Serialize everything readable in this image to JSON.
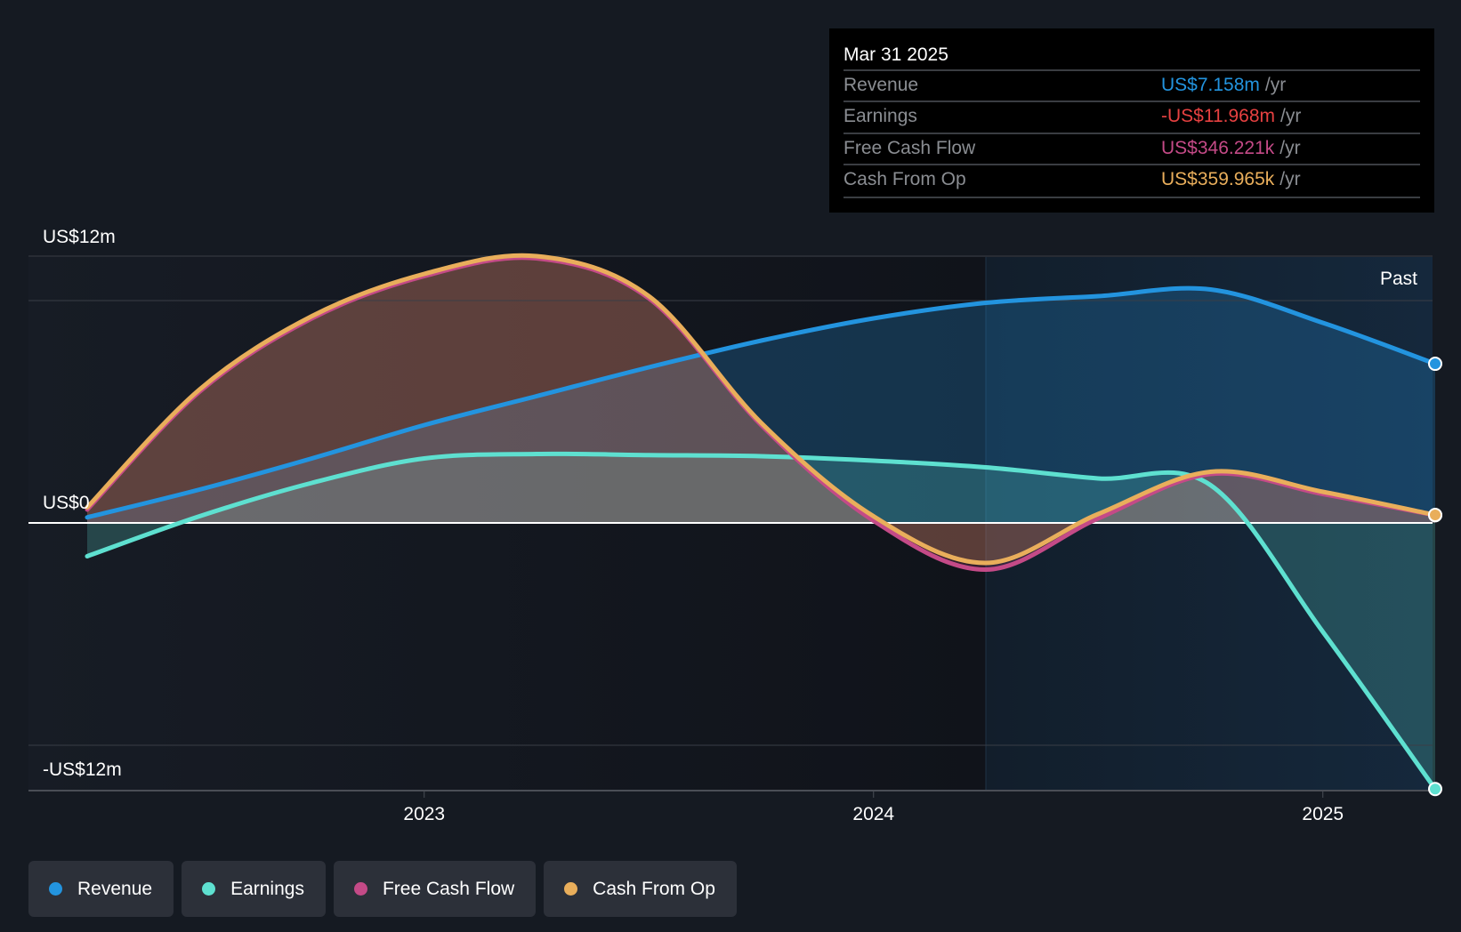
{
  "tooltip": {
    "date": "Mar 31 2025",
    "rows": [
      {
        "label": "Revenue",
        "value": "US$7.158m",
        "unit": "/yr",
        "color": "#2394df"
      },
      {
        "label": "Earnings",
        "value": "-US$11.968m",
        "unit": "/yr",
        "color": "#e64141"
      },
      {
        "label": "Free Cash Flow",
        "value": "US$346.221k",
        "unit": "/yr",
        "color": "#c44a87"
      },
      {
        "label": "Cash From Op",
        "value": "US$359.965k",
        "unit": "/yr",
        "color": "#e9ae5b"
      }
    ]
  },
  "chart_data": {
    "type": "line",
    "title": "",
    "xlabel": "",
    "ylabel": "",
    "ylim": [
      -12,
      12
    ],
    "y_unit": "US$ millions",
    "y_tick_labels": [
      {
        "value": 12,
        "label": "US$12m"
      },
      {
        "value": 0,
        "label": "US$0"
      },
      {
        "value": -12,
        "label": "-US$12m"
      }
    ],
    "x_ticks": [
      {
        "value": 2023,
        "label": "2023"
      },
      {
        "value": 2024,
        "label": "2024"
      },
      {
        "value": 2025,
        "label": "2025"
      }
    ],
    "xlim": [
      2022.25,
      2025.25
    ],
    "past_start": 2024.25,
    "past_label": "Past",
    "x": [
      2022.25,
      2022.5,
      2022.75,
      2023.0,
      2023.25,
      2023.5,
      2023.75,
      2024.0,
      2024.25,
      2024.5,
      2024.75,
      2025.0,
      2025.25
    ],
    "series": [
      {
        "name": "Revenue",
        "color": "#2394df",
        "values": [
          0.25,
          1.5,
          2.9,
          4.4,
          5.7,
          7.0,
          8.2,
          9.2,
          9.9,
          10.2,
          10.5,
          9.0,
          7.158
        ]
      },
      {
        "name": "Earnings",
        "color": "#5ee0d0",
        "values": [
          -1.5,
          0.3,
          1.8,
          2.9,
          3.1,
          3.05,
          3.0,
          2.8,
          2.5,
          2.0,
          1.7,
          -4.9,
          -11.968
        ]
      },
      {
        "name": "Free Cash Flow",
        "color": "#c44a87",
        "values": [
          0.6,
          5.9,
          9.2,
          11.1,
          11.9,
          10.1,
          4.4,
          0.1,
          -2.1,
          0.2,
          2.2,
          1.3,
          0.346
        ]
      },
      {
        "name": "Cash From Op",
        "color": "#e9ae5b",
        "values": [
          0.7,
          6.0,
          9.3,
          11.2,
          12.0,
          10.2,
          4.5,
          0.3,
          -1.8,
          0.4,
          2.3,
          1.4,
          0.36
        ]
      }
    ],
    "legend_position": "bottom-left"
  }
}
